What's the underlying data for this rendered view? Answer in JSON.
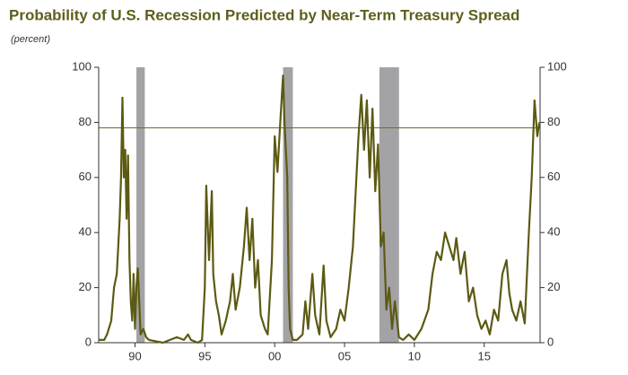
{
  "chart_data": {
    "type": "line",
    "title": "Probability of U.S. Recession Predicted by Near-Term Treasury Spread",
    "subtitle": "(percent)",
    "x": [
      1987.4,
      1987.8,
      1988.0,
      1988.3,
      1988.5,
      1988.7,
      1988.9,
      1989.0,
      1989.1,
      1989.2,
      1989.3,
      1989.4,
      1989.5,
      1989.6,
      1989.7,
      1989.8,
      1989.9,
      1990.0,
      1990.1,
      1990.2,
      1990.3,
      1990.4,
      1990.6,
      1990.8,
      1991.0,
      1992.0,
      1992.5,
      1993.0,
      1993.5,
      1993.8,
      1994.0,
      1994.5,
      1994.8,
      1995.0,
      1995.1,
      1995.3,
      1995.5,
      1995.6,
      1995.8,
      1996.0,
      1996.2,
      1996.5,
      1996.8,
      1997.0,
      1997.2,
      1997.5,
      1997.8,
      1998.0,
      1998.2,
      1998.4,
      1998.6,
      1998.8,
      1999.0,
      1999.3,
      1999.5,
      1999.8,
      2000.0,
      2000.2,
      2000.4,
      2000.6,
      2000.7,
      2000.9,
      2001.0,
      2001.1,
      2001.3,
      2001.6,
      2002.0,
      2002.2,
      2002.4,
      2002.7,
      2002.9,
      2003.2,
      2003.5,
      2003.7,
      2004.0,
      2004.4,
      2004.7,
      2005.0,
      2005.3,
      2005.6,
      2005.8,
      2006.0,
      2006.2,
      2006.4,
      2006.6,
      2006.8,
      2007.0,
      2007.2,
      2007.4,
      2007.6,
      2007.8,
      2008.0,
      2008.2,
      2008.4,
      2008.6,
      2008.9,
      2009.2,
      2009.6,
      2010.0,
      2010.5,
      2011.0,
      2011.3,
      2011.6,
      2011.9,
      2012.2,
      2012.5,
      2012.8,
      2013.0,
      2013.3,
      2013.6,
      2013.9,
      2014.2,
      2014.5,
      2014.8,
      2015.1,
      2015.4,
      2015.7,
      2016.0,
      2016.3,
      2016.6,
      2016.8,
      2017.0,
      2017.3,
      2017.6,
      2017.9,
      2018.2,
      2018.4,
      2018.6,
      2018.8,
      2018.95
    ],
    "series": [
      {
        "color": "#5c5a12",
        "values": [
          1,
          1,
          3,
          8,
          20,
          25,
          45,
          60,
          89,
          60,
          70,
          45,
          68,
          30,
          15,
          8,
          25,
          5,
          20,
          27,
          15,
          3,
          5,
          2,
          1,
          0,
          1,
          2,
          1,
          3,
          1,
          0,
          1,
          20,
          57,
          30,
          55,
          25,
          15,
          10,
          3,
          8,
          15,
          25,
          12,
          20,
          35,
          49,
          30,
          45,
          20,
          30,
          10,
          5,
          3,
          30,
          75,
          62,
          80,
          97,
          80,
          60,
          20,
          5,
          1,
          1,
          3,
          15,
          5,
          25,
          10,
          3,
          28,
          8,
          2,
          5,
          12,
          8,
          20,
          35,
          55,
          75,
          90,
          70,
          88,
          60,
          85,
          55,
          72,
          35,
          40,
          12,
          20,
          5,
          15,
          2,
          1,
          3,
          1,
          5,
          12,
          25,
          33,
          30,
          40,
          35,
          30,
          38,
          25,
          33,
          15,
          20,
          10,
          5,
          8,
          3,
          12,
          8,
          25,
          30,
          18,
          12,
          8,
          15,
          7,
          40,
          60,
          88,
          75,
          80
        ]
      }
    ],
    "xlim": [
      1987.4,
      2019.0
    ],
    "xticks": [
      {
        "value": 1990,
        "label": "90"
      },
      {
        "value": 1995,
        "label": "95"
      },
      {
        "value": 2000,
        "label": "00"
      },
      {
        "value": 2005,
        "label": "05"
      },
      {
        "value": 2010,
        "label": "10"
      },
      {
        "value": 2015,
        "label": "15"
      }
    ],
    "ylim": [
      0,
      100
    ],
    "yticks": [
      0,
      20,
      40,
      60,
      80,
      100
    ],
    "shaded_ranges": [
      [
        1990.1,
        1990.7
      ],
      [
        2000.6,
        2001.3
      ],
      [
        2007.5,
        2008.9
      ]
    ],
    "shade_color": "#a3a3a6",
    "hline": 78,
    "hline_color": "#6b6b3a"
  }
}
